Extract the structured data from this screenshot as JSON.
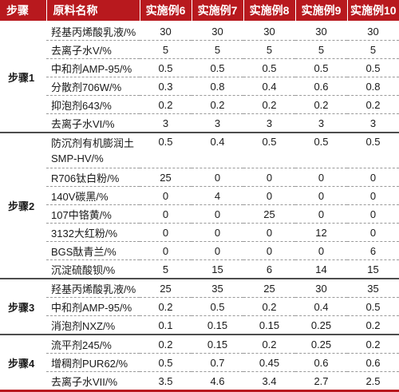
{
  "header": {
    "step": "步骤",
    "material": "原料名称",
    "examples": [
      "实施例6",
      "实施例7",
      "实施例8",
      "实施例9",
      "实施例10"
    ]
  },
  "groups": [
    {
      "step": "步骤1",
      "rows": [
        {
          "material": "羟基丙烯酸乳液/%",
          "values": [
            "30",
            "30",
            "30",
            "30",
            "30"
          ]
        },
        {
          "material": "去离子水V/%",
          "values": [
            "5",
            "5",
            "5",
            "5",
            "5"
          ]
        },
        {
          "material": "中和剂AMP-95/%",
          "values": [
            "0.5",
            "0.5",
            "0.5",
            "0.5",
            "0.5"
          ]
        },
        {
          "material": "分散剂706W/%",
          "values": [
            "0.3",
            "0.8",
            "0.4",
            "0.6",
            "0.8"
          ]
        },
        {
          "material": "抑泡剂643/%",
          "values": [
            "0.2",
            "0.2",
            "0.2",
            "0.2",
            "0.2"
          ]
        },
        {
          "material": "去离子水VI/%",
          "values": [
            "3",
            "3",
            "3",
            "3",
            "3"
          ]
        }
      ]
    },
    {
      "step": "步骤2",
      "rows": [
        {
          "material": "防沉剂有机膨润土SMP-HV/%",
          "values": [
            "0.5",
            "0.4",
            "0.5",
            "0.5",
            "0.5"
          ]
        },
        {
          "material": "R706钛白粉/%",
          "values": [
            "25",
            "0",
            "0",
            "0",
            "0"
          ]
        },
        {
          "material": "140V碳黑/%",
          "values": [
            "0",
            "4",
            "0",
            "0",
            "0"
          ]
        },
        {
          "material": "107中铬黄/%",
          "values": [
            "0",
            "0",
            "25",
            "0",
            "0"
          ]
        },
        {
          "material": "3132大红粉/%",
          "values": [
            "0",
            "0",
            "0",
            "12",
            "0"
          ]
        },
        {
          "material": "BGS酞青兰/%",
          "values": [
            "0",
            "0",
            "0",
            "0",
            "6"
          ]
        },
        {
          "material": "沉淀硫酸钡/%",
          "values": [
            "5",
            "15",
            "6",
            "14",
            "15"
          ]
        }
      ]
    },
    {
      "step": "步骤3",
      "rows": [
        {
          "material": "羟基丙烯酸乳液/%",
          "values": [
            "25",
            "35",
            "25",
            "30",
            "35"
          ]
        },
        {
          "material": "中和剂AMP-95/%",
          "values": [
            "0.2",
            "0.5",
            "0.2",
            "0.4",
            "0.5"
          ]
        },
        {
          "material": "消泡剂NXZ/%",
          "values": [
            "0.1",
            "0.15",
            "0.15",
            "0.25",
            "0.2"
          ]
        }
      ]
    },
    {
      "step": "步骤4",
      "rows": [
        {
          "material": "流平剂245/%",
          "values": [
            "0.2",
            "0.15",
            "0.2",
            "0.25",
            "0.2"
          ]
        },
        {
          "material": "增稠剂PUR62/%",
          "values": [
            "0.5",
            "0.7",
            "0.45",
            "0.6",
            "0.6"
          ]
        },
        {
          "material": "去离子水VII/%",
          "values": [
            "3.5",
            "4.6",
            "3.4",
            "2.7",
            "2.5"
          ]
        }
      ]
    }
  ]
}
